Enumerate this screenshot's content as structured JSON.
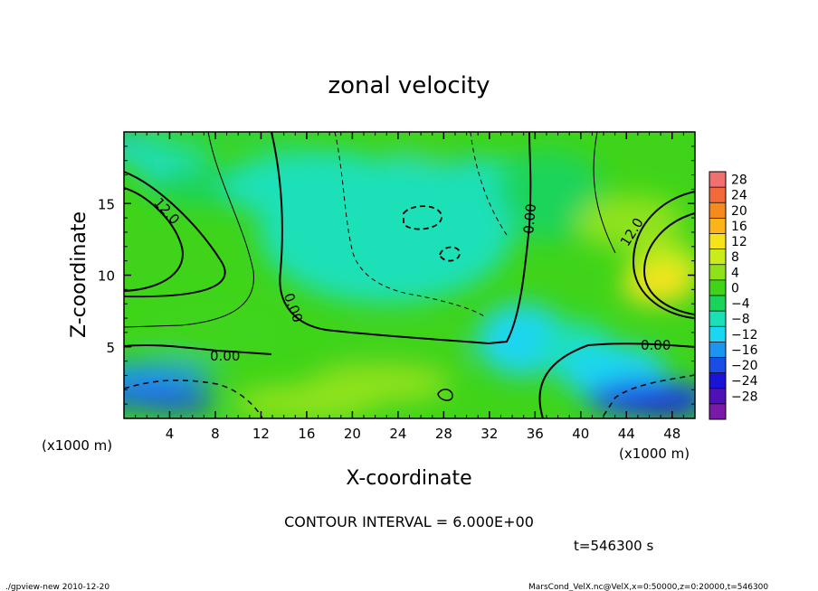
{
  "chart_data": {
    "type": "heatmap",
    "title": "zonal velocity",
    "xlabel": "X-coordinate",
    "ylabel": "Z-coordinate",
    "x_unit_label": "(x1000 m)",
    "z_unit_label": "(x1000 m)",
    "xlim": [
      0,
      50
    ],
    "zlim": [
      0,
      20
    ],
    "x_ticks": [
      4,
      8,
      12,
      16,
      20,
      24,
      28,
      32,
      36,
      40,
      44,
      48
    ],
    "z_ticks": [
      5,
      10,
      15
    ],
    "colorbar_levels": [
      28,
      24,
      20,
      16,
      12,
      8,
      4,
      0,
      -4,
      -8,
      -12,
      -16,
      -20,
      -24,
      -28
    ],
    "colorbar_colors": [
      "#f07070",
      "#f26a3a",
      "#f78a1c",
      "#fbb51a",
      "#f6e31a",
      "#c9ec1a",
      "#8fe21a",
      "#3fd41a",
      "#1ad45a",
      "#1ae0b8",
      "#1ad6f0",
      "#1a96f0",
      "#1a4ce8",
      "#1a14d8",
      "#5010b8",
      "#7a1aa8"
    ],
    "contour_interval_text": "CONTOUR INTERVAL = 6.000E+00",
    "contour_labels": {
      "left_12": "12.0",
      "right_12": "12.0",
      "left_0": "0.00",
      "right_0": "0.00",
      "center_0": "0.00",
      "upper_0": "0.00"
    },
    "time_label": "t=546300 s"
  },
  "footer": {
    "left": "./gpview-new  2010-12-20",
    "right": "MarsCond_VelX.nc@VelX,x=0:50000,z=0:20000,t=546300"
  }
}
